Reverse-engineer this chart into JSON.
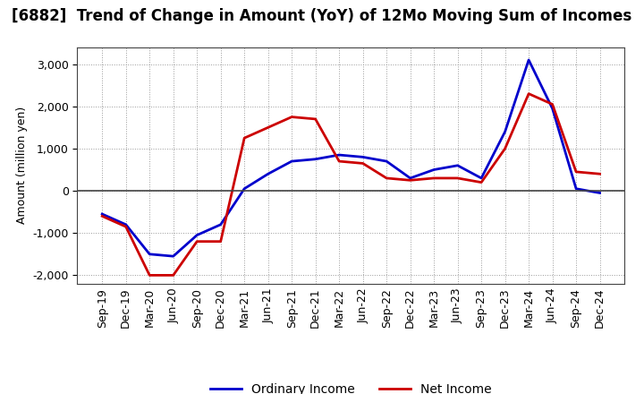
{
  "title": "[6882]  Trend of Change in Amount (YoY) of 12Mo Moving Sum of Incomes",
  "ylabel": "Amount (million yen)",
  "x_labels": [
    "Sep-19",
    "Dec-19",
    "Mar-20",
    "Jun-20",
    "Sep-20",
    "Dec-20",
    "Mar-21",
    "Jun-21",
    "Sep-21",
    "Dec-21",
    "Mar-22",
    "Jun-22",
    "Sep-22",
    "Dec-22",
    "Mar-23",
    "Jun-23",
    "Sep-23",
    "Dec-23",
    "Mar-24",
    "Jun-24",
    "Sep-24",
    "Dec-24"
  ],
  "ordinary_income": [
    -550,
    -800,
    -1500,
    -1550,
    -1050,
    -800,
    50,
    400,
    700,
    750,
    850,
    800,
    700,
    300,
    500,
    600,
    300,
    1400,
    3100,
    1950,
    50,
    -50
  ],
  "net_income": [
    -600,
    -850,
    -2000,
    -2000,
    -1200,
    -1200,
    1250,
    1500,
    1750,
    1700,
    700,
    650,
    300,
    250,
    300,
    300,
    200,
    1000,
    2300,
    2050,
    450,
    400
  ],
  "ordinary_income_color": "#0000CC",
  "net_income_color": "#CC0000",
  "ylim": [
    -2200,
    3400
  ],
  "yticks": [
    -2000,
    -1000,
    0,
    1000,
    2000,
    3000
  ],
  "background_color": "#FFFFFF",
  "grid_color": "#999999",
  "title_fontsize": 12,
  "legend_fontsize": 10,
  "axis_fontsize": 9
}
